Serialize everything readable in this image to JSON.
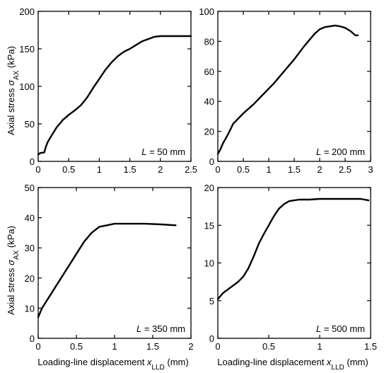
{
  "chart_data": [
    {
      "type": "line",
      "panel_label_prefix": "L",
      "panel_label_value": " = 50 mm",
      "xlim": [
        0,
        2.5
      ],
      "ylim": [
        0,
        200
      ],
      "xticks": [
        "0",
        "0.5",
        "1",
        "1.5",
        "2",
        "2.5"
      ],
      "yticks": [
        "0",
        "50",
        "100",
        "150",
        "200"
      ],
      "series": [
        {
          "x": [
            0,
            0.03,
            0.1,
            0.12,
            0.15,
            0.2,
            0.3,
            0.4,
            0.5,
            0.6,
            0.7,
            0.8,
            0.9,
            1.0,
            1.1,
            1.2,
            1.3,
            1.4,
            1.5,
            1.6,
            1.7,
            1.8,
            1.9,
            2.0,
            2.2,
            2.5
          ],
          "y": [
            9,
            11,
            12,
            18,
            25,
            32,
            45,
            55,
            62,
            68,
            75,
            85,
            98,
            110,
            122,
            132,
            140,
            146,
            150,
            155,
            160,
            163,
            166,
            167,
            167,
            167
          ]
        }
      ]
    },
    {
      "type": "line",
      "panel_label_prefix": "L",
      "panel_label_value": " = 200 mm",
      "xlim": [
        0,
        3.0
      ],
      "ylim": [
        0,
        100
      ],
      "xticks": [
        "0",
        "0.5",
        "1",
        "1.5",
        "2",
        "2.5",
        "3"
      ],
      "yticks": [
        "0",
        "20",
        "40",
        "60",
        "80",
        "100"
      ],
      "series": [
        {
          "x": [
            0,
            0.05,
            0.1,
            0.2,
            0.3,
            0.5,
            0.7,
            0.9,
            1.1,
            1.3,
            1.5,
            1.7,
            1.9,
            2.0,
            2.1,
            2.2,
            2.3,
            2.4,
            2.5,
            2.6,
            2.7,
            2.75
          ],
          "y": [
            5,
            8,
            12,
            18,
            25,
            32,
            38,
            45,
            52,
            60,
            68,
            77,
            85,
            88,
            89.5,
            90,
            90.5,
            90,
            89,
            87,
            84,
            84
          ]
        }
      ]
    },
    {
      "type": "line",
      "panel_label_prefix": "L",
      "panel_label_value": " = 350 mm",
      "xlim": [
        0,
        2.0
      ],
      "ylim": [
        0,
        50
      ],
      "xticks": [
        "0",
        "0.5",
        "1",
        "1.5",
        "2"
      ],
      "yticks": [
        "0",
        "10",
        "20",
        "30",
        "40",
        "50"
      ],
      "series": [
        {
          "x": [
            0,
            0.05,
            0.1,
            0.2,
            0.3,
            0.4,
            0.5,
            0.6,
            0.7,
            0.8,
            0.9,
            1.0,
            1.2,
            1.4,
            1.6,
            1.8
          ],
          "y": [
            7,
            10,
            12,
            16,
            20,
            24,
            28,
            32,
            35,
            37,
            37.5,
            38,
            38,
            38,
            37.8,
            37.5
          ]
        }
      ]
    },
    {
      "type": "line",
      "panel_label_prefix": "L",
      "panel_label_value": " = 500 mm",
      "xlim": [
        0,
        1.5
      ],
      "ylim": [
        0,
        20
      ],
      "xticks": [
        "0",
        "0.5",
        "1",
        "1.5"
      ],
      "yticks": [
        "0",
        "5",
        "10",
        "15",
        "20"
      ],
      "series": [
        {
          "x": [
            0,
            0.05,
            0.1,
            0.15,
            0.2,
            0.25,
            0.3,
            0.35,
            0.4,
            0.45,
            0.5,
            0.55,
            0.6,
            0.65,
            0.7,
            0.75,
            0.8,
            0.9,
            1.0,
            1.2,
            1.4,
            1.48
          ],
          "y": [
            5.2,
            6,
            6.5,
            7,
            7.5,
            8.2,
            9.3,
            10.8,
            12.5,
            13.8,
            15,
            16.2,
            17.2,
            17.8,
            18.2,
            18.3,
            18.4,
            18.4,
            18.5,
            18.5,
            18.5,
            18.3
          ]
        }
      ]
    }
  ],
  "ylabel": {
    "main": "Axial stress ",
    "symbol": "σ",
    "sub": "AX",
    "unit": " (kPa)"
  },
  "xlabel": {
    "main": "Loading-line displacement ",
    "symbol": "x",
    "sub": "LLD",
    "unit": " (mm)"
  }
}
